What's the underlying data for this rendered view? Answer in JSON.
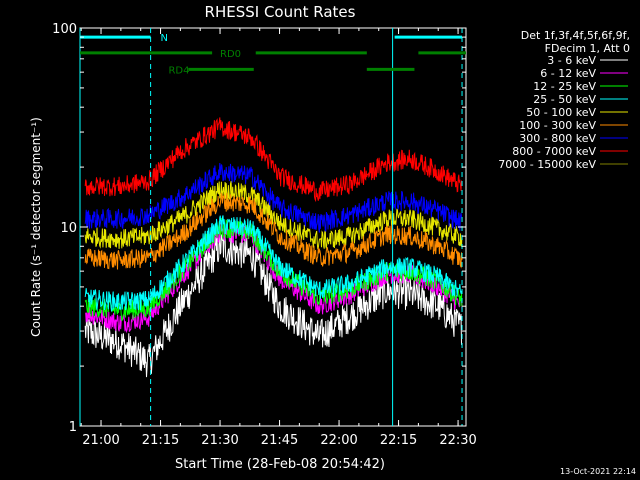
{
  "chart_data": {
    "type": "line",
    "title": "RHESSI Count Rates",
    "xlabel": "Start Time (28-Feb-08 20:54:42)",
    "ylabel": "Count Rate (s⁻¹ detector segment⁻¹)",
    "yscale": "log",
    "ylim": [
      1,
      100
    ],
    "xlim": [
      "20:54:42",
      "22:32:00"
    ],
    "x_ticks": [
      "21:00",
      "21:15",
      "21:30",
      "21:45",
      "22:00",
      "22:15",
      "22:30"
    ],
    "y_ticks": [
      "1",
      "10",
      "100"
    ],
    "legend_header": [
      "Det 1f,3f,4f,5f,6f,9f,",
      "FDecim 1, Att 0"
    ],
    "legend_position": "right",
    "timestamp": "13-Oct-2021 22:14",
    "series": [
      {
        "name": "3 - 6 keV",
        "color": "#ffffff",
        "points": [
          [
            "20:56",
            3.0
          ],
          [
            "21:05",
            2.6
          ],
          [
            "21:12",
            2.1
          ],
          [
            "21:20",
            4.0
          ],
          [
            "21:30",
            8.0
          ],
          [
            "21:38",
            7.2
          ],
          [
            "21:45",
            4.0
          ],
          [
            "21:55",
            2.8
          ],
          [
            "22:03",
            3.6
          ],
          [
            "22:12",
            4.8
          ],
          [
            "22:18",
            4.6
          ],
          [
            "22:25",
            4.0
          ],
          [
            "22:31",
            3.1
          ]
        ]
      },
      {
        "name": "6 - 12 keV",
        "color": "#ff00ff",
        "points": [
          [
            "20:56",
            3.7
          ],
          [
            "21:05",
            3.3
          ],
          [
            "21:12",
            3.5
          ],
          [
            "21:20",
            5.5
          ],
          [
            "21:30",
            9.5
          ],
          [
            "21:38",
            9.0
          ],
          [
            "21:45",
            5.5
          ],
          [
            "21:55",
            4.0
          ],
          [
            "22:03",
            4.6
          ],
          [
            "22:12",
            5.8
          ],
          [
            "22:18",
            5.8
          ],
          [
            "22:25",
            5.0
          ],
          [
            "22:31",
            4.0
          ]
        ]
      },
      {
        "name": "12 - 25 keV",
        "color": "#00ff00",
        "points": [
          [
            "20:56",
            4.0
          ],
          [
            "21:05",
            3.8
          ],
          [
            "21:12",
            3.9
          ],
          [
            "21:20",
            5.9
          ],
          [
            "21:30",
            10.0
          ],
          [
            "21:38",
            9.4
          ],
          [
            "21:45",
            6.0
          ],
          [
            "21:55",
            4.4
          ],
          [
            "22:03",
            4.9
          ],
          [
            "22:12",
            6.0
          ],
          [
            "22:18",
            6.0
          ],
          [
            "22:25",
            5.3
          ],
          [
            "22:31",
            4.3
          ]
        ]
      },
      {
        "name": "25 - 50 keV",
        "color": "#00ffff",
        "points": [
          [
            "20:56",
            4.4
          ],
          [
            "21:05",
            4.2
          ],
          [
            "21:12",
            4.3
          ],
          [
            "21:20",
            6.3
          ],
          [
            "21:30",
            10.3
          ],
          [
            "21:38",
            9.8
          ],
          [
            "21:45",
            6.3
          ],
          [
            "21:55",
            4.8
          ],
          [
            "22:03",
            5.2
          ],
          [
            "22:12",
            6.3
          ],
          [
            "22:18",
            6.3
          ],
          [
            "22:25",
            5.6
          ],
          [
            "22:31",
            4.6
          ]
        ]
      },
      {
        "name": "50 - 100 keV",
        "color": "#e6e600",
        "points": [
          [
            "20:56",
            9.0
          ],
          [
            "21:05",
            8.7
          ],
          [
            "21:12",
            9.0
          ],
          [
            "21:20",
            11.0
          ],
          [
            "21:30",
            15.5
          ],
          [
            "21:38",
            14.5
          ],
          [
            "21:45",
            10.5
          ],
          [
            "21:55",
            8.5
          ],
          [
            "22:03",
            9.0
          ],
          [
            "22:12",
            11.0
          ],
          [
            "22:18",
            11.0
          ],
          [
            "22:25",
            9.8
          ],
          [
            "22:31",
            8.8
          ]
        ]
      },
      {
        "name": "100 - 300 keV",
        "color": "#ff8c00",
        "points": [
          [
            "20:56",
            7.0
          ],
          [
            "21:05",
            6.8
          ],
          [
            "21:12",
            7.0
          ],
          [
            "21:20",
            9.0
          ],
          [
            "21:30",
            13.5
          ],
          [
            "21:38",
            13.0
          ],
          [
            "21:45",
            9.0
          ],
          [
            "21:55",
            7.0
          ],
          [
            "22:03",
            7.5
          ],
          [
            "22:12",
            9.2
          ],
          [
            "22:18",
            9.0
          ],
          [
            "22:25",
            8.0
          ],
          [
            "22:31",
            6.8
          ]
        ]
      },
      {
        "name": "300 - 800 keV",
        "color": "#0000ff",
        "points": [
          [
            "20:56",
            11.0
          ],
          [
            "21:05",
            11.0
          ],
          [
            "21:12",
            11.5
          ],
          [
            "21:20",
            14.0
          ],
          [
            "21:30",
            19.0
          ],
          [
            "21:38",
            18.0
          ],
          [
            "21:45",
            12.5
          ],
          [
            "21:55",
            10.5
          ],
          [
            "22:03",
            11.5
          ],
          [
            "22:12",
            13.5
          ],
          [
            "22:18",
            13.5
          ],
          [
            "22:25",
            12.0
          ],
          [
            "22:31",
            10.5
          ]
        ]
      },
      {
        "name": "800 - 7000 keV",
        "color": "#ff0000",
        "points": [
          [
            "20:56",
            16.0
          ],
          [
            "21:05",
            16.0
          ],
          [
            "21:12",
            17.0
          ],
          [
            "21:20",
            24.0
          ],
          [
            "21:30",
            32.0
          ],
          [
            "21:38",
            28.0
          ],
          [
            "21:45",
            18.0
          ],
          [
            "21:55",
            15.0
          ],
          [
            "22:03",
            16.5
          ],
          [
            "22:12",
            21.0
          ],
          [
            "22:18",
            22.0
          ],
          [
            "22:25",
            19.0
          ],
          [
            "22:31",
            16.0
          ]
        ]
      },
      {
        "name": "7000 - 15000 keV",
        "color": "#808000",
        "points": []
      }
    ],
    "overlays": {
      "vlines": [
        {
          "t": "20:54:42",
          "style": "solid",
          "color": "#00ffff"
        },
        {
          "t": "21:12:30",
          "style": "dashed",
          "color": "#00ffff"
        },
        {
          "t": "22:13:30",
          "style": "solid",
          "color": "#00ffff"
        },
        {
          "t": "22:31:00",
          "style": "dashed",
          "color": "#00ffff"
        }
      ],
      "bars": [
        {
          "label": "N",
          "color": "#00ffff",
          "y": 90,
          "segments": [
            [
              "20:54:42",
              "21:12:30"
            ],
            [
              "22:14:00",
              "22:31:00"
            ]
          ],
          "label_at": "21:15"
        },
        {
          "label": "RD0",
          "color": "#008000",
          "y": 75,
          "segments": [
            [
              "20:54:42",
              "21:28:00"
            ],
            [
              "21:39:00",
              "22:07:00"
            ],
            [
              "22:20:00",
              "22:32:00"
            ]
          ],
          "label_at": "21:30"
        },
        {
          "label": "RD4",
          "color": "#008000",
          "y": 62,
          "segments": [
            [
              "21:22:00",
              "21:38:30"
            ],
            [
              "22:07:00",
              "22:19:00"
            ]
          ],
          "label_at": "21:17"
        }
      ]
    }
  }
}
